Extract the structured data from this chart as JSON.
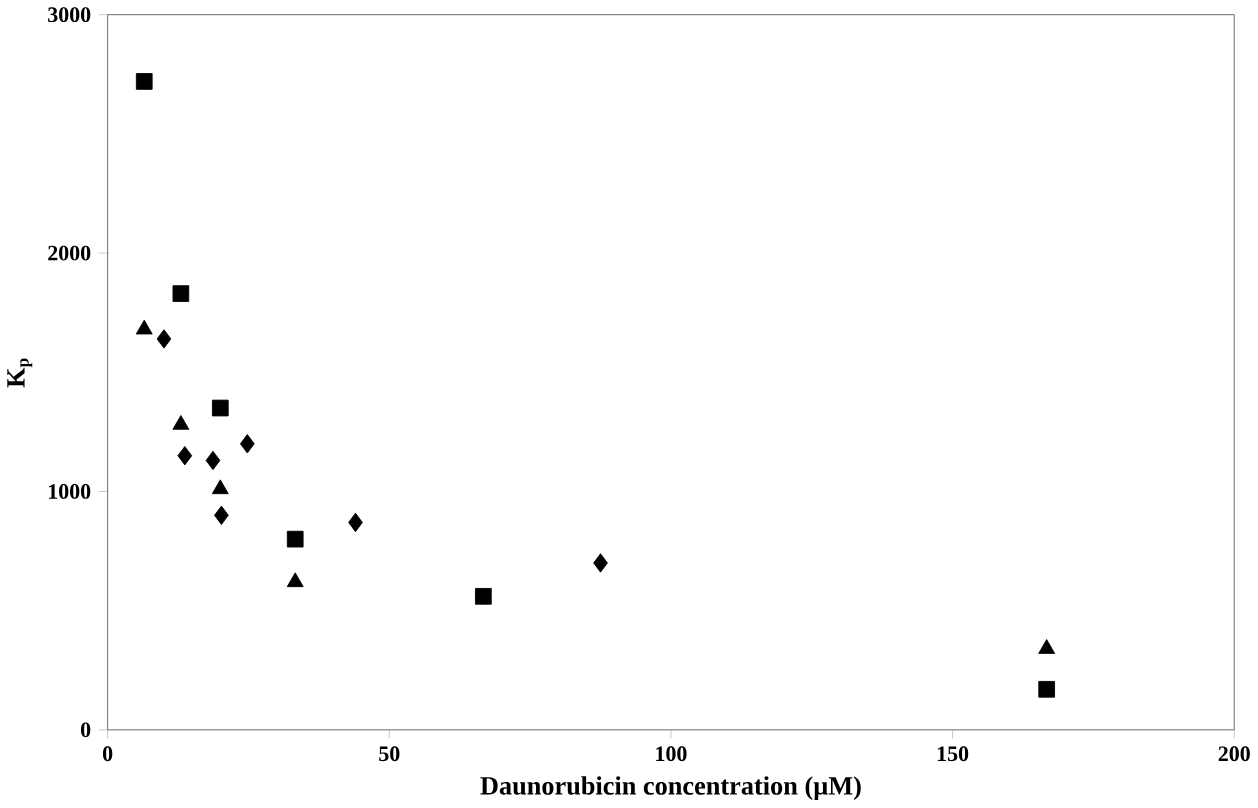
{
  "chart_data": {
    "type": "scatter",
    "xlabel": "Daunorubicin concentration (µM)",
    "ylabel": "K$_{p}$",
    "xlim": [
      0,
      200
    ],
    "xticks": [
      0,
      50,
      100,
      150,
      200
    ],
    "ylim": [
      0,
      3000
    ],
    "yticks": [
      0,
      1000,
      2000,
      3000
    ],
    "series": [
      {
        "marker": "square",
        "color": "#000000",
        "x": [
          6.5,
          13,
          20,
          33.3,
          66.7,
          166.7
        ],
        "values": [
          2720,
          1830,
          1350,
          800,
          560,
          170
        ]
      },
      {
        "marker": "triangle",
        "color": "#000000",
        "x": [
          6.5,
          13,
          20,
          33.3,
          66.7,
          166.7
        ],
        "values": [
          1680,
          1280,
          1010,
          620,
          null,
          340
        ]
      },
      {
        "marker": "diamond",
        "color": "#000000",
        "x": [
          10,
          13.7,
          18.7,
          24.8,
          20.2,
          44,
          87.5
        ],
        "values": [
          1640,
          1150,
          1130,
          1200,
          900,
          870,
          700
        ]
      }
    ]
  }
}
